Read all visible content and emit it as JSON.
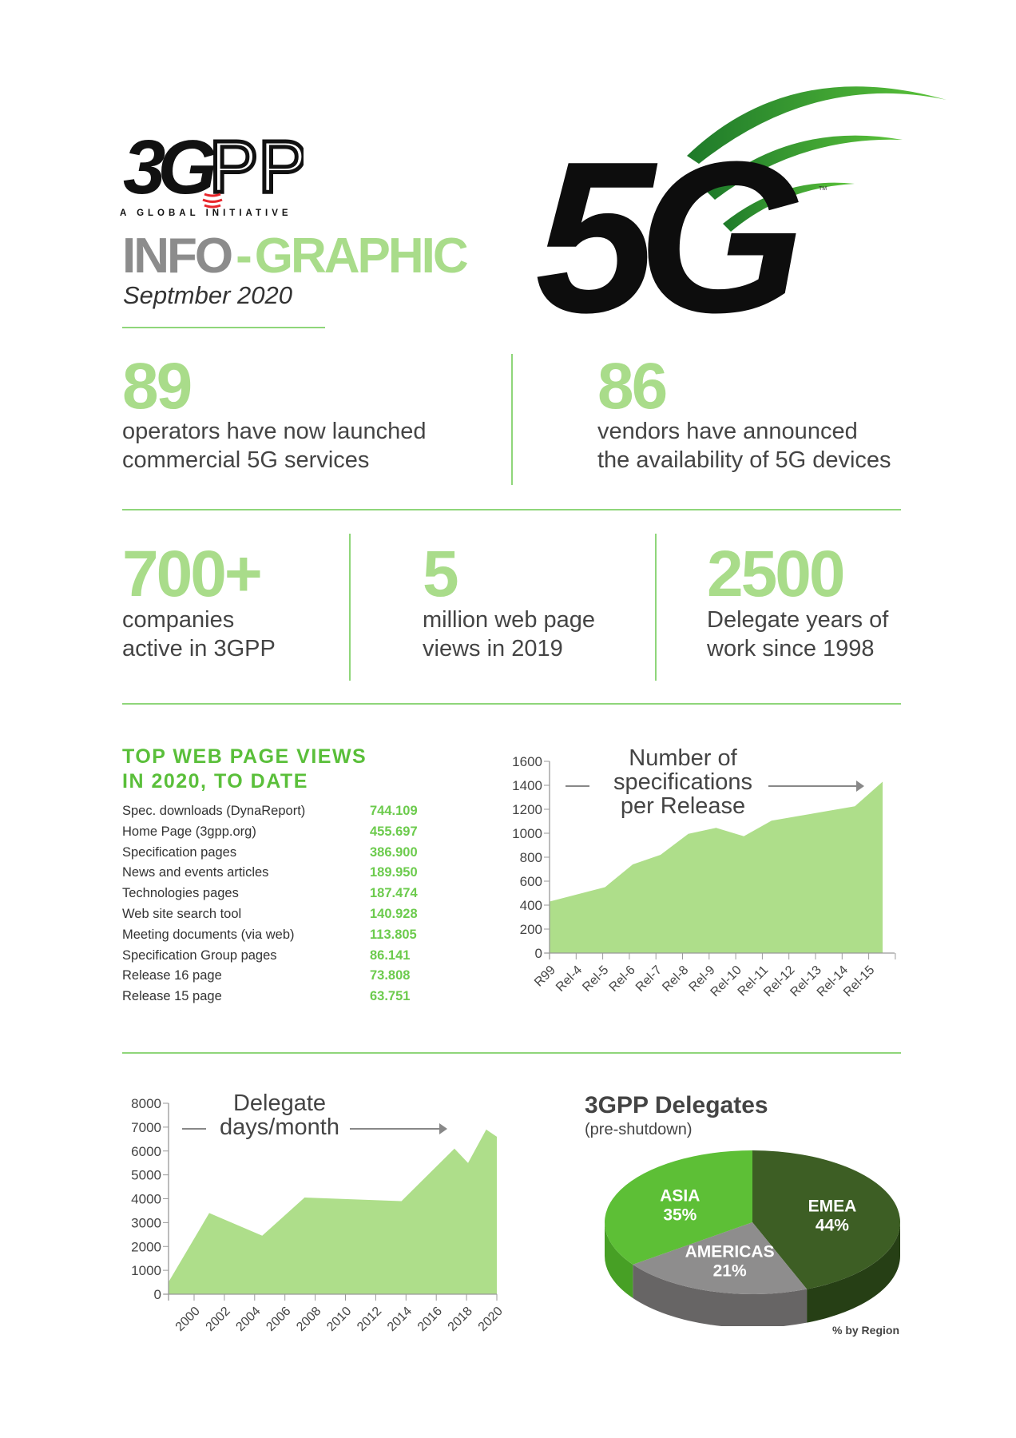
{
  "header": {
    "logo_text": "3GPP",
    "logo_tagline": "A GLOBAL INITIATIVE",
    "title_part1": "INFO",
    "title_dash": "-",
    "title_part2": "GRAPHIC",
    "date": "Septmber 2020",
    "badge_text": "5G",
    "badge_tm": "TM"
  },
  "stats_top": [
    {
      "number": "89",
      "line1": "operators have now launched",
      "line2": "commercial 5G services"
    },
    {
      "number": "86",
      "line1": "vendors have announced",
      "line2": "the availability of 5G devices"
    }
  ],
  "stats_mid": [
    {
      "number": "700+",
      "line1": "companies",
      "line2": "active in 3GPP"
    },
    {
      "number": "5",
      "line1": "million web page",
      "line2": "views in 2019"
    },
    {
      "number": "2500",
      "line1": "Delegate years of",
      "line2": "work since 1998"
    }
  ],
  "colors": {
    "accent_green": "#a9dc8a",
    "title_green": "#5abf3a",
    "value_green": "#6ccb4d",
    "gray": "#8c8c8c",
    "asia": "#5dbf36",
    "emea": "#3d5e24",
    "americas": "#8e8d8d"
  },
  "chart_data": [
    {
      "type": "table",
      "title_line1": "TOP WEB PAGE VIEWS",
      "title_line2": "IN 2020, TO DATE",
      "rows": [
        {
          "label": "Spec. downloads (DynaReport)",
          "value": "744.109"
        },
        {
          "label": "Home Page (3gpp.org)",
          "value": "455.697"
        },
        {
          "label": "Specification pages",
          "value": "386.900"
        },
        {
          "label": "News and events articles",
          "value": "189.950"
        },
        {
          "label": "Technologies pages",
          "value": "187.474"
        },
        {
          "label": "Web site search tool",
          "value": "140.928"
        },
        {
          "label": "Meeting documents (via web)",
          "value": "113.805"
        },
        {
          "label": "Specification Group pages",
          "value": "86.141"
        },
        {
          "label": "Release 16 page",
          "value": "73.808"
        },
        {
          "label": "Release 15 page",
          "value": "63.751"
        }
      ]
    },
    {
      "type": "area",
      "title_lines": [
        "Number of",
        "specifications",
        "per Release"
      ],
      "categories": [
        "R99",
        "Rel-4",
        "Rel-5",
        "Rel-6",
        "Rel-7",
        "Rel-8",
        "Rel-9",
        "Rel-10",
        "Rel-11",
        "Rel-12",
        "Rel-13",
        "Rel-14",
        "Rel-15"
      ],
      "values": [
        430,
        490,
        550,
        740,
        820,
        995,
        1045,
        975,
        1105,
        1145,
        1185,
        1225,
        1430
      ],
      "yticks": [
        0,
        200,
        400,
        600,
        800,
        1000,
        1200,
        1400,
        1600
      ],
      "ylim": [
        0,
        1600
      ],
      "color": "#aede8a",
      "grid": false
    },
    {
      "type": "area",
      "title_lines": [
        "Delegate",
        "days/month"
      ],
      "x": [
        1998.3,
        2001,
        2004.5,
        2007.3,
        2013.7,
        2017.2,
        2018.1,
        2019.3,
        2020
      ],
      "values": [
        500,
        3400,
        2450,
        4050,
        3900,
        6100,
        5500,
        6900,
        6600
      ],
      "xticks": [
        2000,
        2002,
        2004,
        2006,
        2008,
        2010,
        2012,
        2014,
        2016,
        2018,
        2020
      ],
      "yticks": [
        0,
        1000,
        2000,
        3000,
        4000,
        5000,
        6000,
        7000,
        8000
      ],
      "ylim": [
        0,
        8000
      ],
      "color": "#aede8a",
      "grid": false
    },
    {
      "type": "pie",
      "title": "3GPP Delegates",
      "subtitle": "(pre-shutdown)",
      "note": "% by Region",
      "slices": [
        {
          "name": "EMEA",
          "value": 44,
          "label": "44%",
          "color": "#3d5e24",
          "side": "#263f15"
        },
        {
          "name": "AMERICAS",
          "value": 21,
          "label": "21%",
          "color": "#8e8d8d",
          "side": "#676565"
        },
        {
          "name": "ASIA",
          "value": 35,
          "label": "35%",
          "color": "#5dbf36",
          "side": "#47a025"
        }
      ]
    }
  ]
}
